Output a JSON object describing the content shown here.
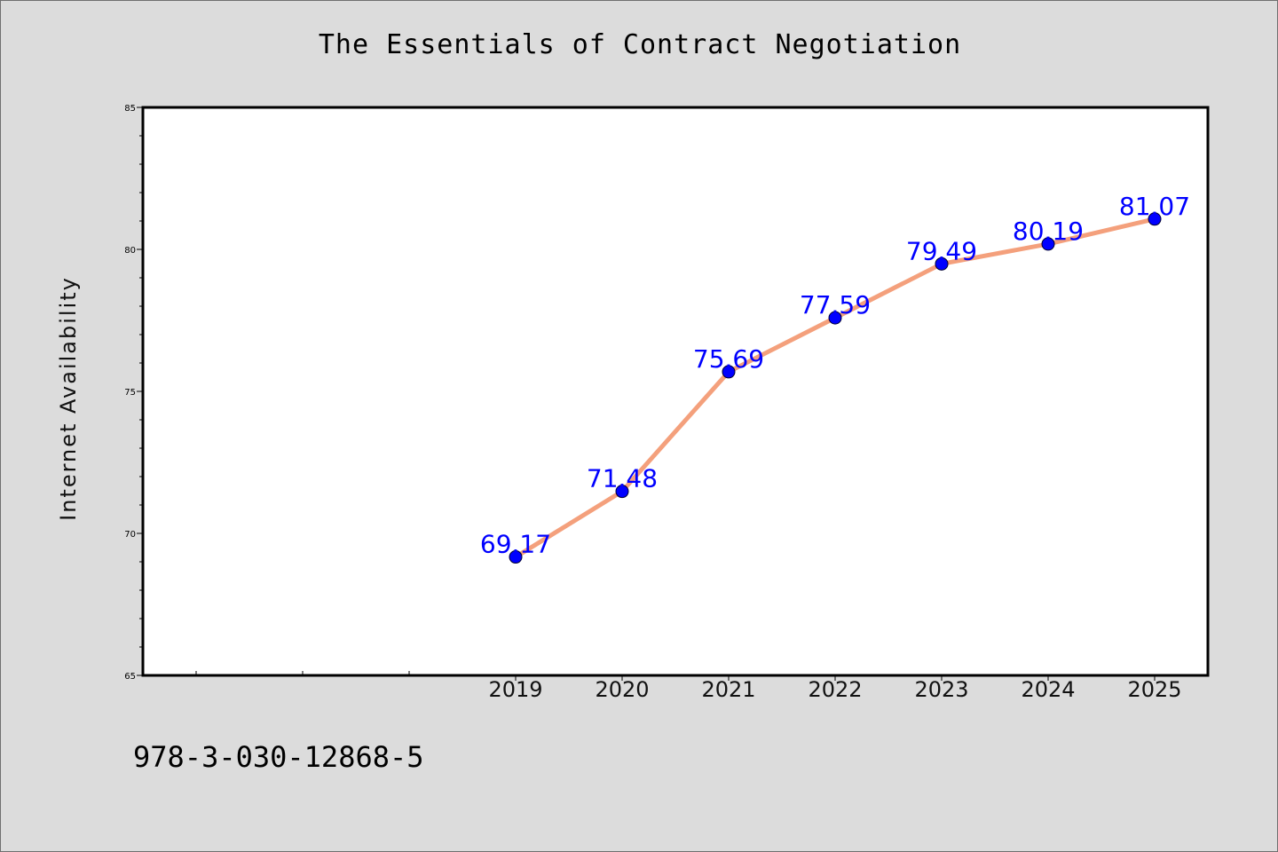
{
  "chart_data": {
    "type": "line",
    "title": "The Essentials of Contract Negotiation",
    "xlabel": "",
    "ylabel": "Internet Availability",
    "x": [
      "2019",
      "2020",
      "2021",
      "2022",
      "2023",
      "2024",
      "2025"
    ],
    "series": [
      {
        "values": [
          69.17,
          71.48,
          75.69,
          77.59,
          79.49,
          80.19,
          81.07
        ]
      }
    ],
    "data_labels": [
      "69.17",
      "71.48",
      "75.69",
      "77.59",
      "79.49",
      "80.19",
      "81.07"
    ],
    "ylim": [
      65,
      85
    ],
    "yticks": [
      "65",
      "70",
      "75",
      "80",
      "85"
    ],
    "grid": false,
    "line_color": "#f4a07c",
    "marker_color": "#0000ff",
    "label_color": "#0000ff"
  },
  "footer": {
    "isbn": "978-3-030-12868-5"
  }
}
